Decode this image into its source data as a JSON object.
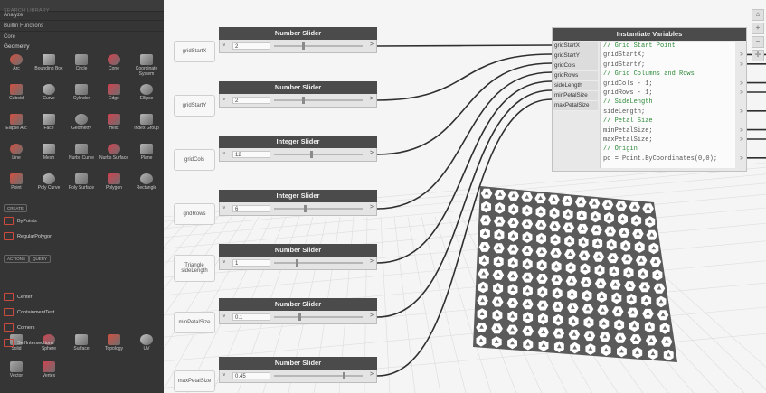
{
  "library": {
    "search_placeholder": "SEARCH LIBRARY",
    "sections": [
      "Analyze",
      "Builtin Functions",
      "Core"
    ],
    "category": "Geometry",
    "geometry_items": [
      [
        "Arc",
        "Bounding Box",
        "Circle",
        "Cone",
        "Coordinate System"
      ],
      [
        "Cuboid",
        "Curve",
        "Cylinder",
        "Edge",
        "Ellipse"
      ],
      [
        "Ellipse Arc",
        "Face",
        "Geometry",
        "Helix",
        "Index Group"
      ],
      [
        "Line",
        "Mesh",
        "Nurbs Curve",
        "Nurbs Surface",
        "Plane"
      ],
      [
        "Point",
        "Poly Curve",
        "Poly Surface",
        "Polygon",
        "Rectangle"
      ]
    ],
    "create_chip": "CREATE",
    "create_items": [
      "ByPoints",
      "RegularPolygon"
    ],
    "action_chip": "ACTIONS",
    "query_chip": "QUERY",
    "action_items": [
      "Center",
      "ContainmentTest",
      "Corners",
      "SelfIntersections"
    ],
    "bottom_items": [
      [
        "Solid",
        "Sphere",
        "Surface",
        "Topology",
        "UV"
      ],
      [
        "Vector",
        "Vertex"
      ]
    ]
  },
  "inputs": [
    {
      "tag": "gridStartX",
      "node": "Number Slider",
      "value": "2",
      "thumb": 0.33
    },
    {
      "tag": "gridStartY",
      "node": "Number Slider",
      "value": "2",
      "thumb": 0.33
    },
    {
      "tag": "gridCols",
      "node": "Integer Slider",
      "value": "12",
      "thumb": 0.42
    },
    {
      "tag": "gridRows",
      "node": "Integer Slider",
      "value": "6",
      "thumb": 0.35
    },
    {
      "tag": "Triangle sideLength",
      "node": "Number Slider",
      "value": "1",
      "thumb": 0.25
    },
    {
      "tag": "minPetalSize",
      "node": "Number Slider",
      "value": "0.1",
      "thumb": 0.28
    },
    {
      "tag": "maxPetalSize",
      "node": "Number Slider",
      "value": "0.45",
      "thumb": 0.8
    }
  ],
  "code_block": {
    "title": "Instantiate Variables",
    "ports": [
      "gridStartX",
      "gridStartY",
      "gridCols",
      "gridRows",
      "sideLength",
      "minPetalSize",
      "maxPetalSize"
    ],
    "lines": [
      {
        "t": "// Grid Start Point",
        "comment": true
      },
      {
        "t": "gridStartX;"
      },
      {
        "t": "gridStartY;"
      },
      {
        "t": "// Grid Columns and Rows",
        "comment": true
      },
      {
        "t": "gridCols - 1;"
      },
      {
        "t": "gridRows - 1;"
      },
      {
        "t": "// SideLength",
        "comment": true
      },
      {
        "t": "sideLength;"
      },
      {
        "t": "// Petal Size",
        "comment": true
      },
      {
        "t": "minPetalSize;"
      },
      {
        "t": "maxPetalSize;"
      },
      {
        "t": "// Origin",
        "comment": true
      },
      {
        "t": "po = Point.ByCoordinates(0,0);"
      }
    ],
    "output_symbol": ">"
  },
  "zoom_bar": [
    "⌂",
    "+",
    "−",
    "✛"
  ],
  "toggle_symbol": "∨",
  "output_symbol": ">",
  "colors": {
    "panel": "#353535",
    "node_header": "#4b4b4b",
    "comment": "#2e8a3a"
  }
}
